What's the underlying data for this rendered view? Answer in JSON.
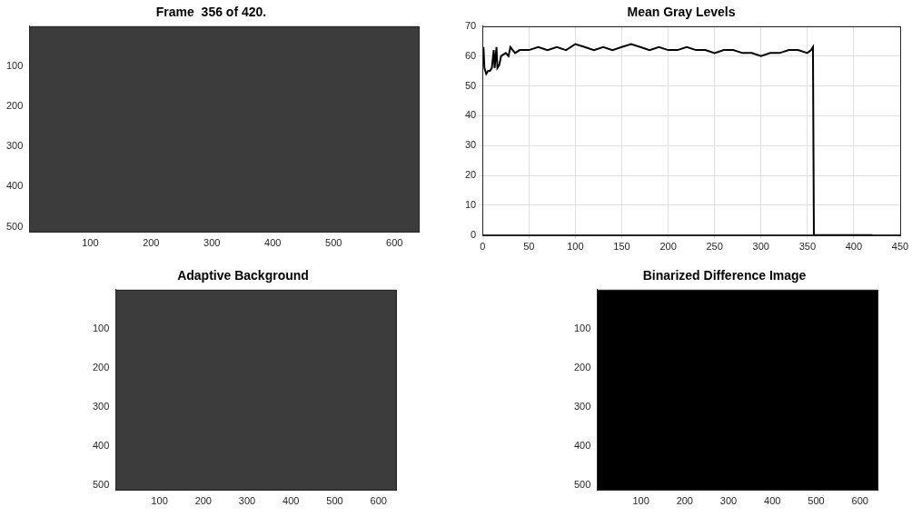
{
  "chart_data": [
    {
      "type": "image",
      "title": "Frame  356 of 420.",
      "color": "#3c3c3c",
      "xlim": [
        0,
        640
      ],
      "ylim": [
        512,
        0
      ],
      "xticks": [
        100,
        200,
        300,
        400,
        500,
        600
      ],
      "yticks": [
        100,
        200,
        300,
        400,
        500
      ],
      "grid": false
    },
    {
      "type": "line",
      "title": "Mean Gray Levels",
      "color": "#000000",
      "x": [
        1,
        2,
        4,
        6,
        8,
        10,
        12,
        13,
        15,
        16,
        18,
        20,
        25,
        28,
        30,
        35,
        40,
        50,
        60,
        70,
        80,
        90,
        100,
        110,
        120,
        130,
        140,
        150,
        160,
        170,
        180,
        190,
        200,
        210,
        220,
        230,
        240,
        250,
        260,
        270,
        280,
        290,
        300,
        310,
        320,
        330,
        340,
        350,
        354,
        356,
        357,
        380,
        400,
        420
      ],
      "values": [
        63,
        56,
        54,
        55,
        55,
        56,
        62,
        56,
        63,
        56,
        57,
        60,
        61,
        60,
        63,
        61,
        62,
        62,
        63,
        62,
        63,
        62,
        64,
        63,
        62,
        63,
        62,
        63,
        64,
        63,
        62,
        63,
        62,
        62,
        63,
        62,
        62,
        61,
        62,
        62,
        61,
        61,
        60,
        61,
        61,
        62,
        62,
        61,
        62,
        63,
        0,
        0,
        0,
        0
      ],
      "xlim": [
        0,
        450
      ],
      "ylim": [
        0,
        70
      ],
      "xticks": [
        0,
        50,
        100,
        150,
        200,
        250,
        300,
        350,
        400,
        450
      ],
      "yticks": [
        0,
        10,
        20,
        30,
        40,
        50,
        60,
        70
      ],
      "grid": true
    },
    {
      "type": "image",
      "title": "Adaptive Background",
      "color": "#3c3c3c",
      "xlim": [
        0,
        640
      ],
      "ylim": [
        512,
        0
      ],
      "xticks": [
        100,
        200,
        300,
        400,
        500,
        600
      ],
      "yticks": [
        100,
        200,
        300,
        400,
        500
      ],
      "grid": false
    },
    {
      "type": "image",
      "title": "Binarized Difference Image",
      "color": "#000000",
      "xlim": [
        0,
        640
      ],
      "ylim": [
        512,
        0
      ],
      "xticks": [
        100,
        200,
        300,
        400,
        500,
        600
      ],
      "yticks": [
        100,
        200,
        300,
        400,
        500
      ],
      "grid": false
    }
  ]
}
